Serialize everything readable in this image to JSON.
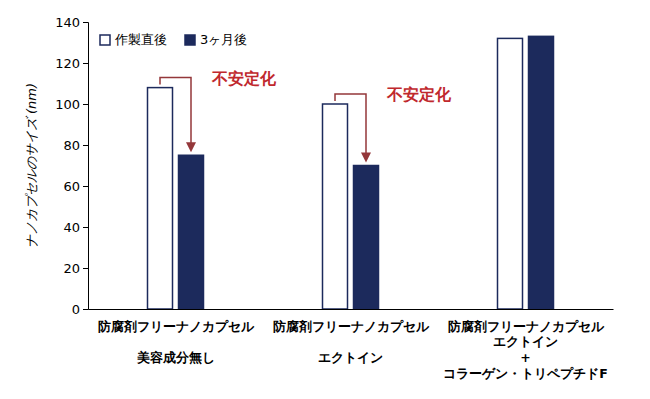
{
  "chart_data": {
    "type": "bar",
    "categories": [
      "防腐剤フリーナノカプセル\n美容成分無し",
      "防腐剤フリーナノカプセル\nエクトイン",
      "防腐剤フリーナノカプセル\nエクトイン\n+\nコラーゲン・トリペプチドF"
    ],
    "series": [
      {
        "name": "作製直後",
        "color": "#ffffff",
        "values": [
          108,
          100,
          132
        ]
      },
      {
        "name": "3ヶ月後",
        "color": "#1c2a5c",
        "values": [
          75,
          70,
          133
        ]
      }
    ],
    "y_label": "ナノカプセルのサイズ (nm)",
    "ylim": [
      0,
      140
    ],
    "yticks": [
      0,
      20,
      40,
      60,
      80,
      100,
      120,
      140
    ],
    "grid": false,
    "legend": "upper left",
    "annotations": [
      "不安定化",
      "不安定化"
    ]
  }
}
